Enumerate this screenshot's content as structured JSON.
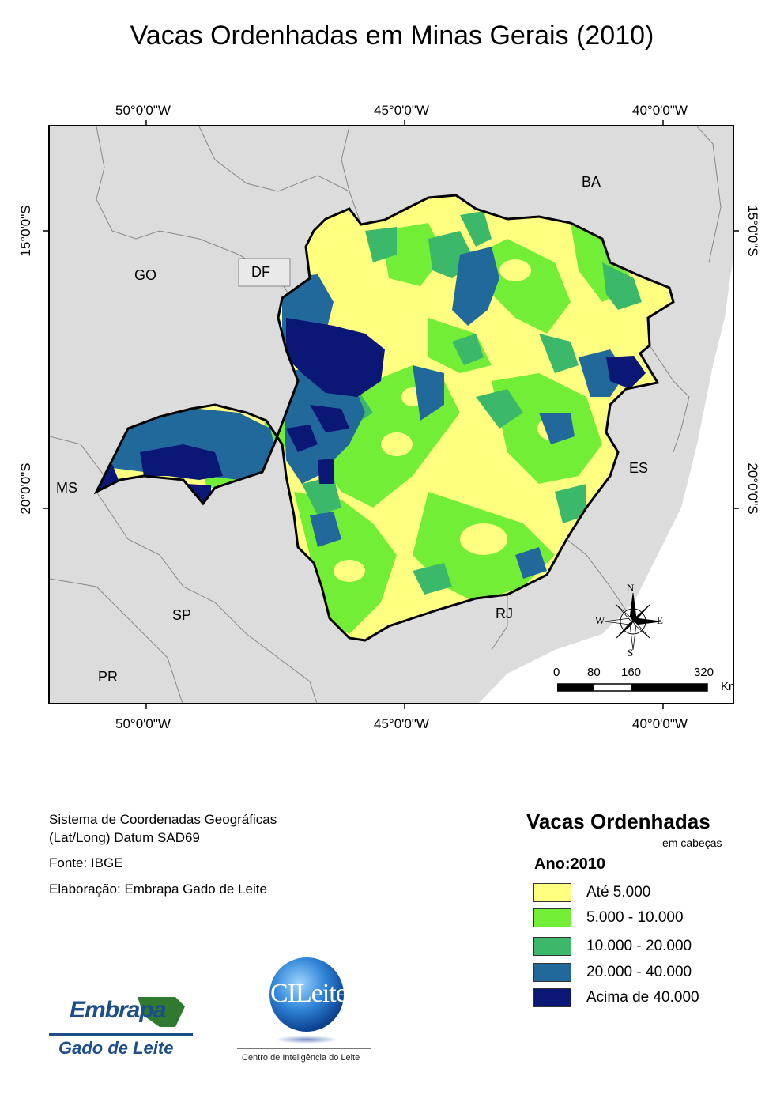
{
  "title": "Vacas Ordenhadas em Minas Gerais (2010)",
  "coords": {
    "top": [
      "50°0'0\"W",
      "45°0'0\"W",
      "40°0'0\"W"
    ],
    "bottom": [
      "50°0'0\"W",
      "45°0'0\"W",
      "40°0'0\"W"
    ],
    "left": [
      "15°0'0\"S",
      "20°0'0\"S"
    ],
    "right": [
      "15°0'0\"S",
      "20°0'0\"S"
    ]
  },
  "states": {
    "ba": "BA",
    "go": "GO",
    "df": "DF",
    "ms": "MS",
    "es": "ES",
    "sp": "SP",
    "rj": "RJ",
    "pr": "PR"
  },
  "compass": {
    "n": "N",
    "s": "S",
    "e": "E",
    "w": "W"
  },
  "scale": {
    "labels": [
      "0",
      "80",
      "160",
      "320"
    ],
    "unit": "Km"
  },
  "info": {
    "line1": "Sistema de Coordenadas Geográficas",
    "line2": "(Lat/Long) Datum SAD69",
    "line3": "Fonte: IBGE",
    "line4": "Elaboração: Embrapa Gado de Leite"
  },
  "legend": {
    "title": "Vacas Ordenhadas",
    "subtitle": "em cabeças",
    "year": "Ano:2010",
    "classes": [
      {
        "label": "Até 5.000",
        "color": "#ffff80"
      },
      {
        "label": "5.000 - 10.000",
        "color": "#72ee37"
      },
      {
        "label": "10.000 - 20.000",
        "color": "#3cb86a"
      },
      {
        "label": "20.000 - 40.000",
        "color": "#21699a"
      },
      {
        "label": "Acima de 40.000",
        "color": "#0a1774"
      }
    ]
  },
  "logos": {
    "embrapa": {
      "name": "Embrapa",
      "sub": "Gado de Leite"
    },
    "cileite": {
      "name": "CILeite",
      "sub": "Centro de Inteligência do Leite"
    }
  }
}
